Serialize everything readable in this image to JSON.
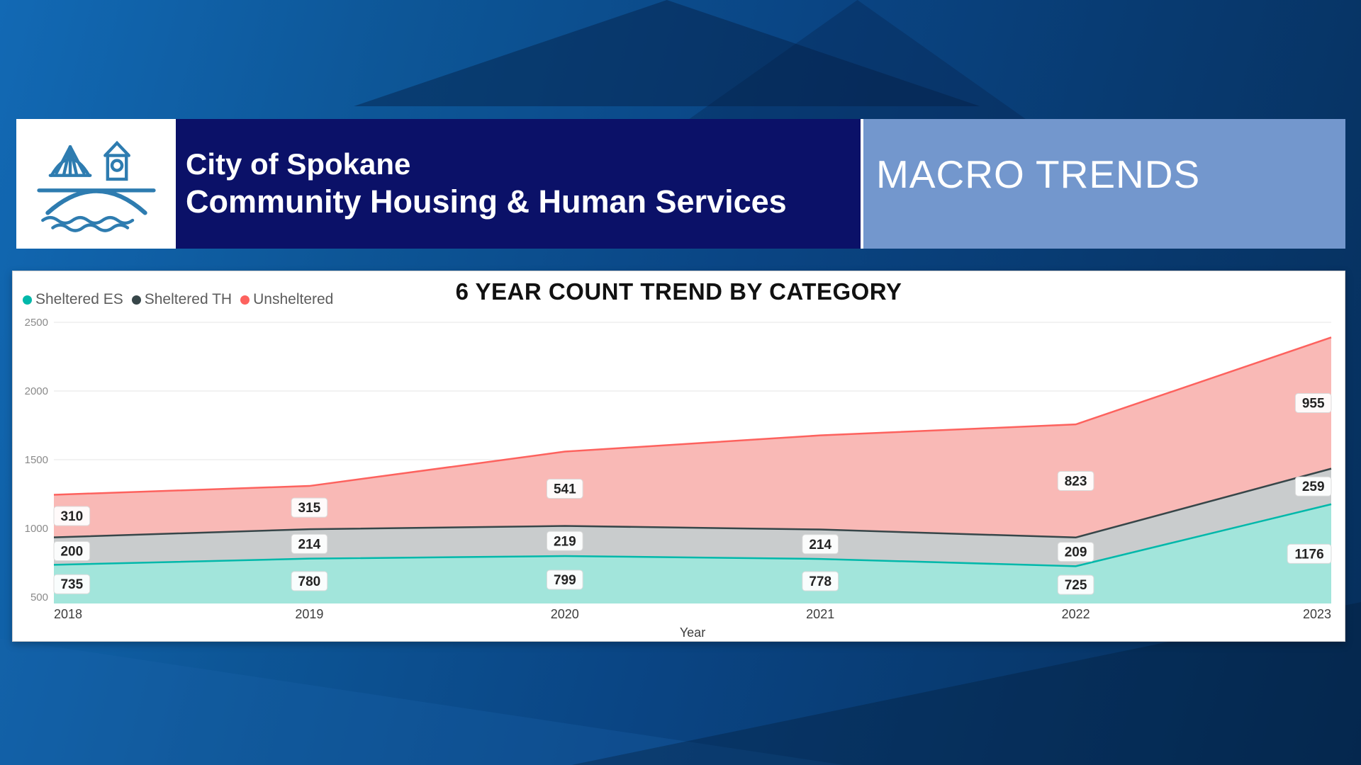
{
  "header": {
    "line1": "City of Spokane",
    "line2": "Community Housing & Human Services",
    "right_title": "MACRO TRENDS",
    "org_box_color": "#0b1168",
    "section_box_color": "#7397cd"
  },
  "chart_data": {
    "type": "area",
    "stacked": true,
    "title": "6 YEAR COUNT TREND BY CATEGORY",
    "xlabel": "Year",
    "ylabel": "",
    "x": [
      2018,
      2019,
      2020,
      2021,
      2022,
      2023
    ],
    "y_ticks": [
      500,
      1000,
      1500,
      2000,
      2500
    ],
    "ylim": [
      450,
      2550
    ],
    "grid": true,
    "legend_position": "top-left",
    "series": [
      {
        "name": "Sheltered ES",
        "color": "#01b8aa",
        "fill": "#a2e5db",
        "values": [
          735,
          780,
          799,
          778,
          725,
          1176
        ],
        "labels_shown": [
          true,
          true,
          true,
          true,
          true,
          true
        ]
      },
      {
        "name": "Sheltered TH",
        "color": "#374649",
        "fill": "#c9cccd",
        "values": [
          200,
          214,
          219,
          214,
          209,
          259
        ],
        "labels_shown": [
          true,
          true,
          true,
          true,
          true,
          true
        ]
      },
      {
        "name": "Unsheltered",
        "color": "#fd625e",
        "fill": "#f9b9b6",
        "values": [
          310,
          315,
          541,
          685,
          823,
          955
        ],
        "labels_shown": [
          true,
          true,
          true,
          false,
          true,
          true
        ]
      }
    ]
  }
}
